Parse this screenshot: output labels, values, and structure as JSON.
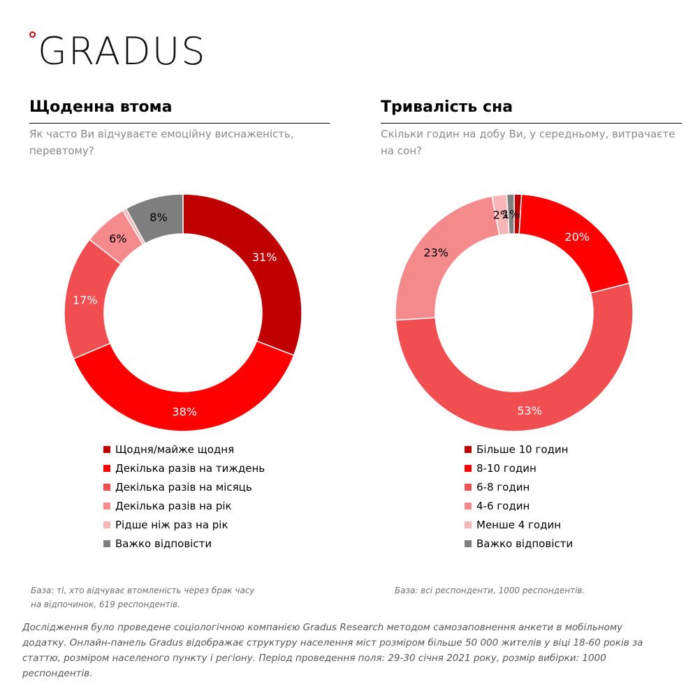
{
  "brand": {
    "logo_text": "GRADUS",
    "accent": "#c00000"
  },
  "chart_data": [
    {
      "type": "pie",
      "variant": "donut",
      "title": "Щоденна втома",
      "subtitle": "Як часто Ви відчуваєте емоційну виснаженість, перевтому?",
      "categories": [
        "Щодня/майже щодня",
        "Декілька разів на тиждень",
        "Декілька разів на місяць",
        "Декілька разів на рік",
        "Рідше ніж раз на рік",
        "Важко відповісти"
      ],
      "values": [
        31,
        38,
        17,
        6,
        0.5,
        8
      ],
      "labels": [
        "31%",
        "38%",
        "17%",
        "6%",
        "",
        "8%"
      ],
      "colors": [
        "#c00000",
        "#ff0000",
        "#f04e50",
        "#f48a8c",
        "#f9b6b7",
        "#7f7f7f"
      ],
      "legend_position": "bottom",
      "base_note": "База: ті, хто відчуває втомленість через брак часу на відпочинок, 619 респондентів."
    },
    {
      "type": "pie",
      "variant": "donut",
      "title": "Тривалість сна",
      "subtitle": "Скільки годин на добу Ви, у середньому, витрачаєте на сон?",
      "categories": [
        "Більше 10 годин",
        "8-10 годин",
        "6-8 годин",
        "4-6 годин",
        "Менше 4 годин",
        "Важко відповісти"
      ],
      "values": [
        1,
        20,
        53,
        23,
        2,
        1
      ],
      "labels": [
        "",
        "20%",
        "53%",
        "23%",
        "2%",
        "1%"
      ],
      "colors": [
        "#c00000",
        "#ff0000",
        "#f04e50",
        "#f48a8c",
        "#f9b6b7",
        "#7f7f7f"
      ],
      "legend_position": "bottom",
      "base_note": "База: всі респонденти, 1000 респондентів."
    }
  ],
  "footnote": "Дослідження було проведене соціологічною компанією Gradus Research методом самозаповнення анкети в мобільному додатку. Онлайн-панель Gradus відображає структуру населення міст розміром більше 50 000 жителів у віці 18-60 років за статтю, розміром населеного пункту і регіону. Період проведення поля: 29-30 січня 2021 року, розмір вибірки: 1000 респондентів."
}
